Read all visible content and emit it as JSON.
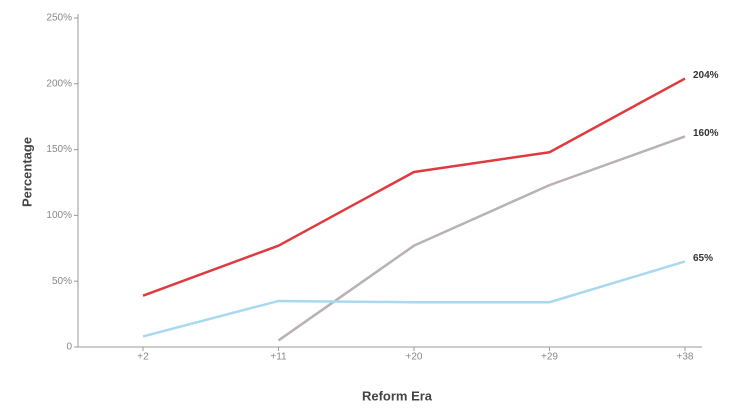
{
  "chart_data": {
    "type": "line",
    "x_label": "Reform Era",
    "y_label": "Percentage",
    "categories": [
      "+2",
      "+11",
      "+20",
      "+29",
      "+38"
    ],
    "series": [
      {
        "color": "#e0393e",
        "values": [
          39,
          77,
          133,
          148,
          204
        ],
        "value_labels": [
          null,
          null,
          null,
          null,
          "204%"
        ]
      },
      {
        "color": "#b9b1b3",
        "values": [
          null,
          5,
          77,
          123,
          160
        ],
        "value_labels": [
          null,
          null,
          null,
          null,
          "160%"
        ]
      },
      {
        "color": "#a9d9ee",
        "values": [
          8,
          35,
          34,
          34,
          65
        ],
        "value_labels": [
          null,
          null,
          null,
          null,
          "65%"
        ]
      }
    ],
    "ylim": [
      0,
      250
    ],
    "yticks": [
      0,
      {
        "value": 50,
        "label": "50%"
      },
      {
        "value": 100,
        "label": "100%"
      },
      {
        "value": 150,
        "label": "150%"
      },
      {
        "value": 200,
        "label": "200%"
      },
      {
        "value": 250,
        "label": "250%"
      }
    ],
    "grid": false
  }
}
